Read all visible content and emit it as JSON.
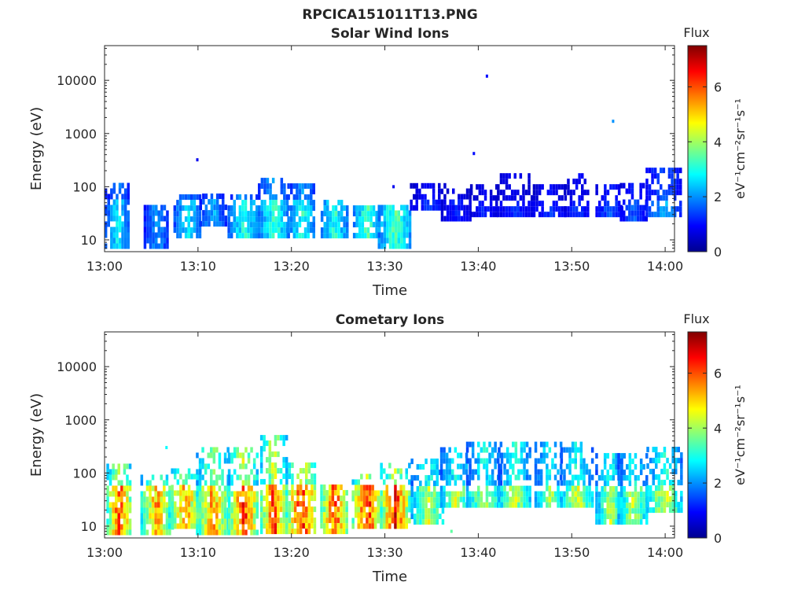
{
  "figure_title": "RPCICA151011T13.PNG",
  "colormap": [
    "#00008f",
    "#0000ff",
    "#0080ff",
    "#00ffff",
    "#80ff80",
    "#ffff00",
    "#ff8000",
    "#ff0000",
    "#800000"
  ],
  "chart_data": [
    {
      "type": "heatmap",
      "title": "Solar Wind Ions",
      "xlabel": "Time",
      "ylabel": "Energy (eV)",
      "xticks": [
        "13:00",
        "13:10",
        "13:20",
        "13:30",
        "13:40",
        "13:50",
        "14:00"
      ],
      "yticks": [
        "10",
        "100",
        "1000",
        "10000"
      ],
      "xlim": [
        "13:00",
        "14:01"
      ],
      "ylim": [
        6,
        45000
      ],
      "yscale": "log",
      "grid": false,
      "colorbar": {
        "label": "Flux",
        "units": "eV⁻¹cm⁻²sr⁻¹s⁻¹",
        "ticks": [
          "0",
          "2",
          "4",
          "6"
        ],
        "range": [
          0,
          7.5
        ]
      },
      "bursts": [
        {
          "t": 1.3,
          "emin": 6,
          "emax": 110,
          "flux": 3.0
        },
        {
          "t": 5.5,
          "emin": 6,
          "emax": 45,
          "flux": 2.3
        },
        {
          "t": 8.8,
          "emin": 12,
          "emax": 70,
          "flux": 3.0
        },
        {
          "t": 11.5,
          "emin": 20,
          "emax": 70,
          "flux": 2.5
        },
        {
          "t": 14.8,
          "emin": 12,
          "emax": 75,
          "flux": 3.4
        },
        {
          "t": 18.0,
          "emin": 12,
          "emax": 150,
          "flux": 3.6
        },
        {
          "t": 21.0,
          "emin": 12,
          "emax": 130,
          "flux": 3.4
        },
        {
          "t": 24.5,
          "emin": 12,
          "emax": 60,
          "flux": 3.5
        },
        {
          "t": 28.0,
          "emin": 12,
          "emax": 45,
          "flux": 3.8
        },
        {
          "t": 31.0,
          "emin": 6,
          "emax": 45,
          "flux": 3.8
        },
        {
          "t": 34.5,
          "emin": 40,
          "emax": 110,
          "flux": 1.5
        },
        {
          "t": 37.5,
          "emin": 25,
          "emax": 100,
          "flux": 1.3
        },
        {
          "t": 40.5,
          "emin": 30,
          "emax": 100,
          "flux": 1.3
        },
        {
          "t": 43.8,
          "emin": 30,
          "emax": 200,
          "flux": 1.4
        },
        {
          "t": 47.5,
          "emin": 30,
          "emax": 110,
          "flux": 1.5
        },
        {
          "t": 50.5,
          "emin": 30,
          "emax": 160,
          "flux": 1.5
        },
        {
          "t": 54.0,
          "emin": 30,
          "emax": 110,
          "flux": 1.8
        },
        {
          "t": 56.5,
          "emin": 25,
          "emax": 130,
          "flux": 1.8
        },
        {
          "t": 59.8,
          "emin": 30,
          "emax": 250,
          "flux": 2.5
        }
      ],
      "isolated_points": [
        {
          "t": 9.8,
          "e": 320,
          "flux": 0.8
        },
        {
          "t": 30.8,
          "e": 100,
          "flux": 0.8
        },
        {
          "t": 39.4,
          "e": 420,
          "flux": 1.0
        },
        {
          "t": 40.8,
          "e": 12000,
          "flux": 1.0
        },
        {
          "t": 54.3,
          "e": 1700,
          "flux": 2.0
        }
      ]
    },
    {
      "type": "heatmap",
      "title": "Cometary Ions",
      "xlabel": "Time",
      "ylabel": "Energy (eV)",
      "xticks": [
        "13:00",
        "13:10",
        "13:20",
        "13:30",
        "13:40",
        "13:50",
        "14:00"
      ],
      "yticks": [
        "10",
        "100",
        "1000",
        "10000"
      ],
      "xlim": [
        "13:00",
        "14:01"
      ],
      "ylim": [
        6,
        45000
      ],
      "yscale": "log",
      "grid": false,
      "colorbar": {
        "label": "Flux",
        "units": "eV⁻¹cm⁻²sr⁻¹s⁻¹",
        "ticks": [
          "0",
          "2",
          "4",
          "6"
        ],
        "range": [
          0,
          7.5
        ]
      },
      "bursts": [
        {
          "t": 1.5,
          "emin": 6,
          "emax": 160,
          "flux": 6.8
        },
        {
          "t": 5.5,
          "emin": 6,
          "emax": 100,
          "flux": 6.0
        },
        {
          "t": 8.5,
          "emin": 10,
          "emax": 130,
          "flux": 6.0
        },
        {
          "t": 11.5,
          "emin": 6,
          "emax": 300,
          "flux": 6.0
        },
        {
          "t": 14.8,
          "emin": 6,
          "emax": 300,
          "flux": 6.8
        },
        {
          "t": 18.0,
          "emin": 8,
          "emax": 550,
          "flux": 6.8
        },
        {
          "t": 21.0,
          "emin": 8,
          "emax": 160,
          "flux": 7.0
        },
        {
          "t": 24.5,
          "emin": 8,
          "emax": 60,
          "flux": 6.8
        },
        {
          "t": 28.0,
          "emin": 10,
          "emax": 100,
          "flux": 7.0
        },
        {
          "t": 31.0,
          "emin": 10,
          "emax": 160,
          "flux": 7.0
        },
        {
          "t": 34.5,
          "emin": 12,
          "emax": 200,
          "flux": 4.8
        },
        {
          "t": 37.5,
          "emin": 25,
          "emax": 280,
          "flux": 4.8
        },
        {
          "t": 40.5,
          "emin": 25,
          "emax": 420,
          "flux": 4.6
        },
        {
          "t": 43.8,
          "emin": 25,
          "emax": 380,
          "flux": 4.8
        },
        {
          "t": 47.5,
          "emin": 25,
          "emax": 350,
          "flux": 4.6
        },
        {
          "t": 50.5,
          "emin": 25,
          "emax": 400,
          "flux": 4.8
        },
        {
          "t": 54.0,
          "emin": 12,
          "emax": 250,
          "flux": 4.6
        },
        {
          "t": 56.5,
          "emin": 12,
          "emax": 250,
          "flux": 4.6
        },
        {
          "t": 59.8,
          "emin": 20,
          "emax": 300,
          "flux": 5.0
        }
      ],
      "isolated_points": [
        {
          "t": 6.5,
          "e": 300,
          "flux": 2.8
        },
        {
          "t": 37.0,
          "e": 8,
          "flux": 3.5
        }
      ]
    }
  ]
}
